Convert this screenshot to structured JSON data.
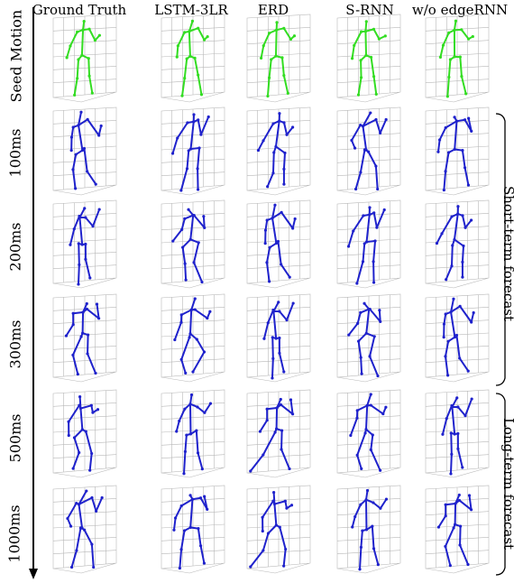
{
  "columns": [
    "Ground Truth",
    "LSTM-3LR",
    "ERD",
    "S-RNN",
    "w/o edgeRNN"
  ],
  "rows": [
    "Seed Motion",
    "100ms",
    "200ms",
    "300ms",
    "500ms",
    "1000ms"
  ],
  "brackets": [
    "Short-term forecast",
    "Long-term forecast"
  ],
  "colors": {
    "seed": "#33dd22",
    "forecast": "#1f22cc",
    "grid": "#b8b8b8",
    "text": "#000000"
  }
}
